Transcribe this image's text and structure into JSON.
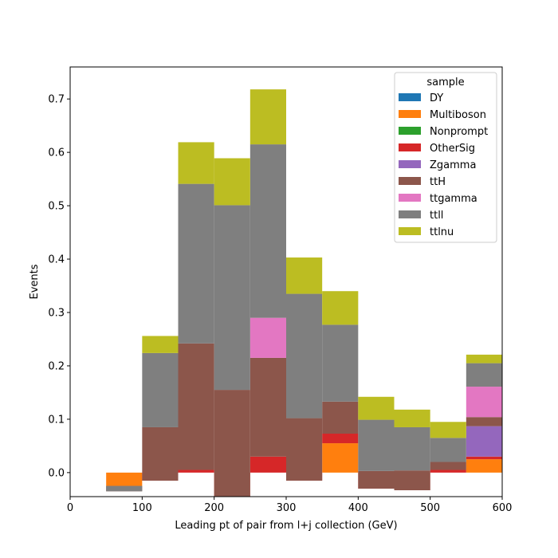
{
  "chart_data": {
    "type": "bar",
    "stacked": true,
    "histogram": true,
    "bin_edges": [
      50,
      100,
      150,
      200,
      250,
      300,
      350,
      400,
      450,
      500,
      550,
      600
    ],
    "xlabel": "Leading pt of pair from l+j collection (GeV)",
    "ylabel": "Events",
    "xlim": [
      0,
      600
    ],
    "ylim": [
      -0.045,
      0.76
    ],
    "xticks": [
      0,
      100,
      200,
      300,
      400,
      500,
      600
    ],
    "yticks": [
      0.0,
      0.1,
      0.2,
      0.3,
      0.4,
      0.5,
      0.6,
      0.7
    ],
    "xtick_labels": [
      "0",
      "100",
      "200",
      "300",
      "400",
      "500",
      "600"
    ],
    "ytick_labels": [
      "0.0",
      "0.1",
      "0.2",
      "0.3",
      "0.4",
      "0.5",
      "0.6",
      "0.7"
    ],
    "legend_title": "sample",
    "legend_position": "upper right",
    "grid": false,
    "series": [
      {
        "name": "DY",
        "color": "#1f77b4",
        "values": [
          0,
          0,
          0,
          0,
          0,
          0,
          0,
          0,
          0,
          0,
          0
        ]
      },
      {
        "name": "Multiboson",
        "color": "#ff7f0e",
        "values": [
          -0.025,
          0,
          0,
          0,
          0,
          0,
          0.055,
          0,
          0,
          0,
          0.025
        ]
      },
      {
        "name": "Nonprompt",
        "color": "#2ca02c",
        "values": [
          0,
          0,
          0,
          0,
          0,
          0,
          0,
          0,
          0,
          0,
          0
        ]
      },
      {
        "name": "OtherSig",
        "color": "#d62728",
        "values": [
          0,
          -0.015,
          0.005,
          -0.045,
          0.03,
          -0.015,
          0.018,
          -0.03,
          -0.033,
          0.005,
          0.005
        ]
      },
      {
        "name": "Zgamma",
        "color": "#9467bd",
        "values": [
          0,
          0,
          0,
          0,
          0,
          0,
          0,
          0,
          0,
          0,
          0.057
        ]
      },
      {
        "name": "ttH",
        "color": "#8c564b",
        "values": [
          -0.01,
          0.1,
          0.237,
          0.2,
          0.185,
          0.117,
          0.06,
          0.033,
          0.037,
          0.015,
          0.017
        ]
      },
      {
        "name": "ttgamma",
        "color": "#e377c2",
        "values": [
          0,
          0,
          0,
          0,
          0.075,
          0,
          0,
          0,
          0,
          0,
          0.057
        ]
      },
      {
        "name": "ttll",
        "color": "#7f7f7f",
        "values": [
          0.01,
          0.139,
          0.299,
          0.346,
          0.325,
          0.233,
          0.144,
          0.096,
          0.081,
          0.045,
          0.044
        ]
      },
      {
        "name": "ttlnu",
        "color": "#bcbd22",
        "values": [
          0,
          0.032,
          0.078,
          0.088,
          0.103,
          0.068,
          0.063,
          0.043,
          0.033,
          0.03,
          0.016
        ]
      }
    ]
  }
}
